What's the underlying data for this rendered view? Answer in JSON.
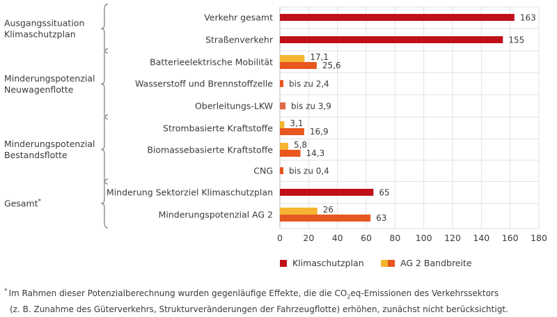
{
  "chart_data": {
    "type": "bar",
    "orientation": "horizontal",
    "xlim": [
      0,
      180
    ],
    "xticks": [
      "0",
      "20",
      "40",
      "60",
      "80",
      "100",
      "120",
      "140",
      "160",
      "180"
    ],
    "grid": true,
    "groups": [
      {
        "label": [
          "Ausgangssituation",
          "Klimaschutzplan"
        ],
        "rows": [
          0,
          1
        ]
      },
      {
        "label": [
          "Minderungspotenzial",
          "Neuwagenflotte"
        ],
        "rows": [
          2,
          3,
          4
        ]
      },
      {
        "label": [
          "Minderungspotenzial",
          "Bestandsflotte"
        ],
        "rows": [
          5,
          6,
          7
        ]
      },
      {
        "label": [
          "Gesamt"
        ],
        "marker": "*",
        "rows": [
          8,
          9
        ]
      }
    ],
    "rows": [
      {
        "label": "Verkehr gesamt",
        "bars": [
          {
            "kind": "klima",
            "value": 163,
            "text": "163"
          }
        ]
      },
      {
        "label": "Straßenverkehr",
        "bars": [
          {
            "kind": "klima",
            "value": 155,
            "text": "155"
          }
        ]
      },
      {
        "label": "Batterieelektrische Mobilität",
        "bars": [
          {
            "kind": "ag2low",
            "value": 17.1,
            "text": "17,1"
          },
          {
            "kind": "ag2high",
            "value": 25.6,
            "text": "25,6"
          }
        ]
      },
      {
        "label": "Wasserstoff und Brennstoffzelle",
        "bars": [
          {
            "kind": "ag2high",
            "value": 2.4,
            "text": "bis zu 2,4"
          }
        ]
      },
      {
        "label": "Oberleitungs-LKW",
        "bars": [
          {
            "kind": "ag2mid",
            "value": 3.9,
            "text": "bis zu 3,9"
          }
        ]
      },
      {
        "label": "Strombasierte Kraftstoffe",
        "bars": [
          {
            "kind": "ag2low",
            "value": 3.1,
            "text": "3,1"
          },
          {
            "kind": "ag2high",
            "value": 16.9,
            "text": "16,9"
          }
        ]
      },
      {
        "label": "Biomassebasierte Kraftstoffe",
        "bars": [
          {
            "kind": "ag2low",
            "value": 5.8,
            "text": "5,8"
          },
          {
            "kind": "ag2high",
            "value": 14.3,
            "text": "14,3"
          }
        ]
      },
      {
        "label": "CNG",
        "bars": [
          {
            "kind": "ag2high",
            "value": 0.4,
            "text": "bis zu 0,4"
          }
        ]
      },
      {
        "label": "Minderung Sektorziel Klimaschutzplan",
        "bars": [
          {
            "kind": "klima",
            "value": 65,
            "text": "65"
          }
        ]
      },
      {
        "label": "Minderungspotenzial AG 2",
        "bars": [
          {
            "kind": "ag2low",
            "value": 26,
            "text": "26"
          },
          {
            "kind": "ag2high",
            "value": 63,
            "text": "63"
          }
        ]
      }
    ],
    "legend": [
      {
        "kind": "klima",
        "label": "Klimaschutzplan"
      },
      {
        "kind": "ag2",
        "label": "AG 2 Bandbreite"
      }
    ],
    "colors": {
      "klima": "#c0101a",
      "ag2low": "#f5b431",
      "ag2high": "#e8571f",
      "ag2mid": "#e06a4a",
      "grid": "#e2e2e2",
      "axis": "#b9b9b9",
      "brace": "#8a8a8a"
    }
  },
  "footnote": {
    "marker": "*",
    "line1_a": "Im Rahmen dieser Potenzialberechnung wurden gegenläufige Effekte, die die CO",
    "line1_sub": "2",
    "line1_b": "eq-Emissionen des Verkehrssektors",
    "line2": "(z. B. Zunahme des Güterverkehrs, Strukturveränderungen der Fahrzeugflotte) erhöhen, zunächst nicht berücksichtigt."
  }
}
